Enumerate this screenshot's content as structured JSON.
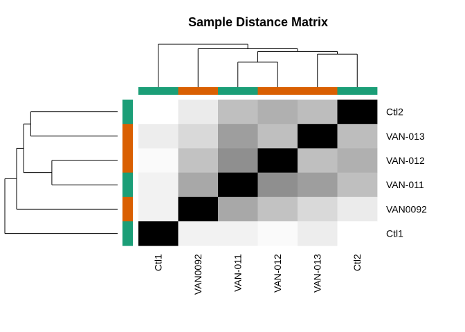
{
  "chart_data": {
    "type": "heatmap",
    "title": "Sample Distance Matrix",
    "col_order": [
      "Ctl1",
      "VAN0092",
      "VAN-011",
      "VAN-012",
      "VAN-013",
      "Ctl2"
    ],
    "row_order_top_to_bottom": [
      "Ctl2",
      "VAN-013",
      "VAN-012",
      "VAN-011",
      "VAN0092",
      "Ctl1"
    ],
    "matrix": [
      [
        1.0,
        0.92,
        0.75,
        0.69,
        0.74,
        0.0
      ],
      [
        0.93,
        0.85,
        0.62,
        0.75,
        0.0,
        0.74
      ],
      [
        0.98,
        0.76,
        0.56,
        0.0,
        0.75,
        0.69
      ],
      [
        0.95,
        0.66,
        0.0,
        0.56,
        0.62,
        0.75
      ],
      [
        0.95,
        0.0,
        0.66,
        0.76,
        0.85,
        0.92
      ],
      [
        0.0,
        0.95,
        0.95,
        0.98,
        0.93,
        1.0
      ]
    ],
    "annotation": {
      "Ctl1": "#1B9E77",
      "VAN0092": "#D95F02",
      "VAN-011": "#1B9E77",
      "VAN-012": "#D95F02",
      "VAN-013": "#D95F02",
      "Ctl2": "#1B9E77"
    },
    "color_scale": [
      "#000000",
      "#ffffff"
    ],
    "col_dendrogram_merges": [
      {
        "left": "VAN-011",
        "right": "VAN-012",
        "height": 0.56
      },
      {
        "left": "VAN-013",
        "right": "Ctl2",
        "height": 0.74
      },
      {
        "left": "m1",
        "right": "m2",
        "height": 0.8
      },
      {
        "left": "VAN0092",
        "right": "m3",
        "height": 0.86
      },
      {
        "left": "Ctl1",
        "right": "m4",
        "height": 0.96
      }
    ],
    "row_dendrogram_merges": [
      {
        "left": "VAN-012",
        "right": "VAN-011",
        "height": 0.56
      },
      {
        "left": "Ctl2",
        "right": "VAN-013",
        "height": 0.74
      },
      {
        "left": "m2",
        "right": "m1",
        "height": 0.8
      },
      {
        "left": "m3",
        "right": "VAN0092",
        "height": 0.86
      },
      {
        "left": "m4",
        "right": "Ctl1",
        "height": 0.96
      }
    ]
  }
}
